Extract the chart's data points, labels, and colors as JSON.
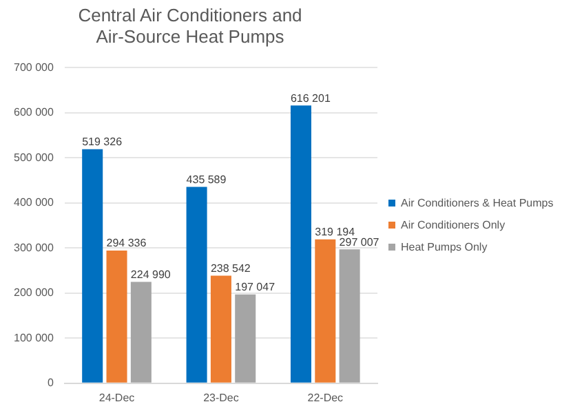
{
  "chart_data": {
    "type": "bar",
    "title": [
      "Central Air Conditioners and",
      "Air-Source Heat Pumps"
    ],
    "categories": [
      "24-Dec",
      "23-Dec",
      "22-Dec"
    ],
    "series": [
      {
        "name": "Air Conditioners & Heat Pumps",
        "color": "#0070c0",
        "values": [
          519326,
          435589,
          616201
        ],
        "value_labels": [
          "519 326",
          "435 589",
          "616 201"
        ]
      },
      {
        "name": "Air Conditioners Only",
        "color": "#ed7d31",
        "values": [
          294336,
          238542,
          319194
        ],
        "value_labels": [
          "294 336",
          "238 542",
          "319 194"
        ]
      },
      {
        "name": "Heat Pumps Only",
        "color": "#a5a5a5",
        "values": [
          224990,
          197047,
          297007
        ],
        "value_labels": [
          "224 990",
          "197 047",
          "297 007"
        ]
      }
    ],
    "ylim": [
      0,
      700000
    ],
    "yticks": [
      0,
      {
        "value": 100000,
        "label": "100 000"
      },
      {
        "value": 200000,
        "label": "200 000"
      },
      {
        "value": 300000,
        "label": "300 000"
      },
      {
        "value": 400000,
        "label": "400 000"
      },
      {
        "value": 500000,
        "label": "500 000"
      },
      {
        "value": 600000,
        "label": "600 000"
      },
      {
        "value": 700000,
        "label": "700 000"
      }
    ],
    "grid": "y",
    "legend": "right"
  }
}
